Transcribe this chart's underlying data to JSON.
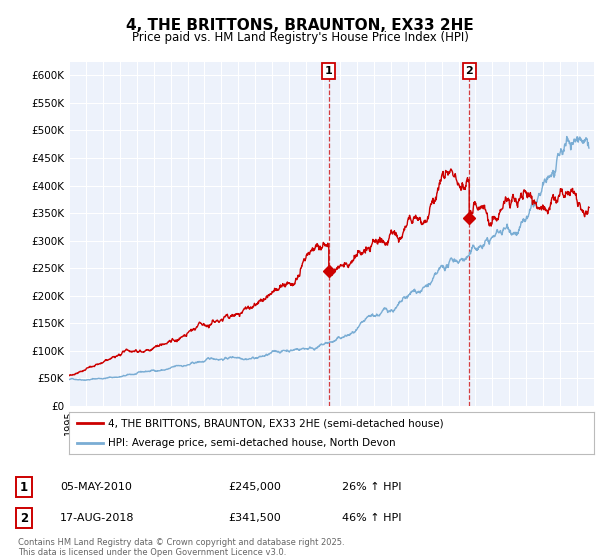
{
  "title": "4, THE BRITTONS, BRAUNTON, EX33 2HE",
  "subtitle": "Price paid vs. HM Land Registry's House Price Index (HPI)",
  "ylim": [
    0,
    625000
  ],
  "yticks": [
    0,
    50000,
    100000,
    150000,
    200000,
    250000,
    300000,
    350000,
    400000,
    450000,
    500000,
    550000,
    600000
  ],
  "ytick_labels": [
    "£0",
    "£50K",
    "£100K",
    "£150K",
    "£200K",
    "£250K",
    "£300K",
    "£350K",
    "£400K",
    "£450K",
    "£500K",
    "£550K",
    "£600K"
  ],
  "xmin": 1995.0,
  "xmax": 2026.0,
  "purchase1_x": 2010.34,
  "purchase1_y": 245000,
  "purchase1_label": "1",
  "purchase1_date": "05-MAY-2010",
  "purchase1_price": "£245,000",
  "purchase1_hpi": "26% ↑ HPI",
  "purchase2_x": 2018.63,
  "purchase2_y": 341500,
  "purchase2_label": "2",
  "purchase2_date": "17-AUG-2018",
  "purchase2_price": "£341,500",
  "purchase2_hpi": "46% ↑ HPI",
  "line1_color": "#cc0000",
  "line2_color": "#7aadd4",
  "bg_color": "#edf2fb",
  "legend1": "4, THE BRITTONS, BRAUNTON, EX33 2HE (semi-detached house)",
  "legend2": "HPI: Average price, semi-detached house, North Devon",
  "footer": "Contains HM Land Registry data © Crown copyright and database right 2025.\nThis data is licensed under the Open Government Licence v3.0."
}
